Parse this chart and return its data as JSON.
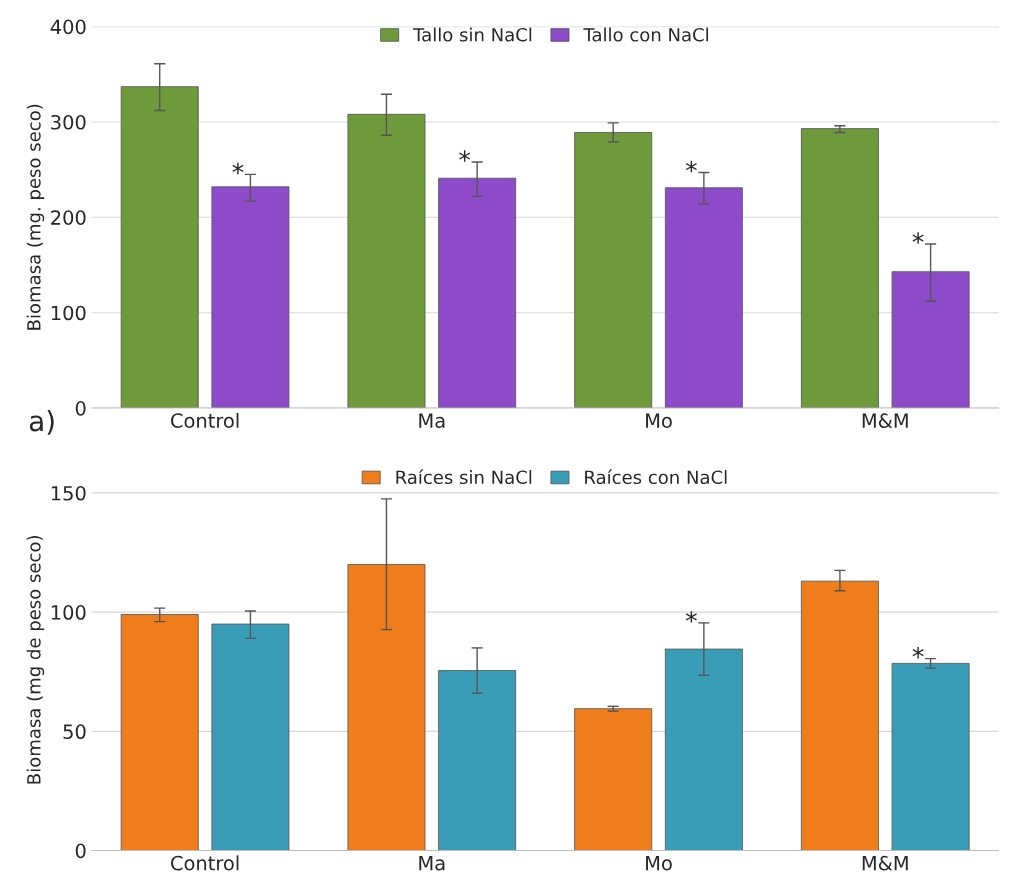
{
  "chart_data": [
    {
      "type": "bar",
      "ylabel": "Biomasa (mg. peso seco)",
      "categories": [
        "Control",
        "Ma",
        "Mo",
        "M&M"
      ],
      "ylim": [
        0,
        400
      ],
      "yticks": [
        0,
        100,
        200,
        300,
        400
      ],
      "grid": "y",
      "legend": "top",
      "series": [
        {
          "name": "Tallo sin NaCl",
          "color": "#6e9a3c",
          "values": [
            337,
            308,
            289,
            293
          ],
          "errors": [
            [
              312,
              361
            ],
            [
              286,
              329
            ],
            [
              279,
              299
            ],
            [
              289,
              296
            ]
          ]
        },
        {
          "name": "Tallo con NaCl",
          "color": "#8e4bc9",
          "values": [
            232,
            241,
            231,
            143
          ],
          "errors": [
            [
              217,
              245
            ],
            [
              222,
              258
            ],
            [
              214,
              247
            ],
            [
              112,
              172
            ]
          ],
          "value_labels": [
            "*",
            "*",
            "*",
            "*"
          ]
        }
      ],
      "annotations": [
        "a)"
      ]
    },
    {
      "type": "bar",
      "ylabel": "Biomasa (mg de peso seco)",
      "categories": [
        "Control",
        "Ma",
        "Mo",
        "M&M"
      ],
      "ylim": [
        0,
        160
      ],
      "yticks": [
        0,
        50,
        100,
        150
      ],
      "grid": "y",
      "legend": "top",
      "series": [
        {
          "name": "Raíces sin NaCl",
          "color": "#f07d1c",
          "values": [
            99,
            120,
            59.5,
            113
          ],
          "errors": [
            [
              96,
              101.7
            ],
            [
              92.7,
              147.5
            ],
            [
              58.5,
              60.5
            ],
            [
              109,
              117.5
            ]
          ]
        },
        {
          "name": "Raíces con NaCl",
          "color": "#3a9db8",
          "values": [
            95,
            75.5,
            84.5,
            78.5
          ],
          "errors": [
            [
              89,
              100.5
            ],
            [
              66,
              85
            ],
            [
              73.5,
              95.5
            ],
            [
              76.5,
              80.5
            ]
          ],
          "value_labels": [
            null,
            null,
            "*",
            "*"
          ]
        }
      ]
    }
  ]
}
